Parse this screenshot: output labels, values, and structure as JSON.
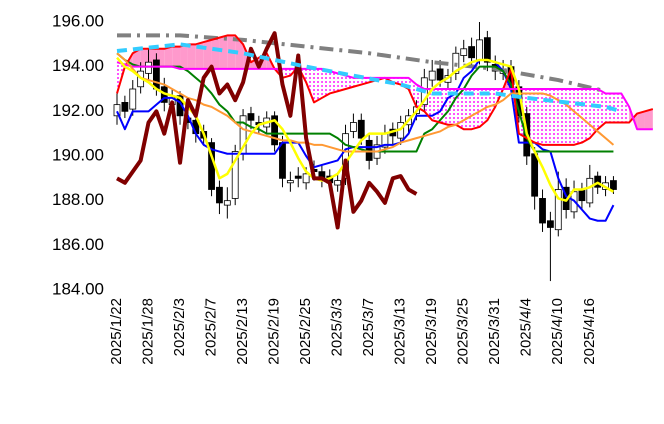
{
  "chart_data": {
    "type": "candlestick",
    "categories": [
      "2025/1/22",
      null,
      null,
      null,
      "2025/1/28",
      null,
      null,
      null,
      "2025/2/3",
      null,
      null,
      null,
      "2025/2/7",
      null,
      null,
      null,
      "2025/2/13",
      null,
      null,
      null,
      "2025/2/19",
      null,
      null,
      null,
      "2025/2/25",
      null,
      null,
      null,
      "2025/3/3",
      null,
      null,
      null,
      "2025/3/7",
      null,
      null,
      null,
      "2025/3/13",
      null,
      null,
      null,
      "2025/3/19",
      null,
      null,
      null,
      "2025/3/25",
      null,
      null,
      null,
      "2025/3/31",
      null,
      null,
      null,
      "2025/4/4",
      null,
      null,
      null,
      "2025/4/10",
      null,
      null,
      null,
      "2025/4/16",
      null,
      null,
      null,
      null,
      null,
      null,
      null,
      null
    ],
    "ylim": [
      184,
      196
    ],
    "yticks": [
      {
        "value": 184,
        "label": "184.00"
      },
      {
        "value": 186,
        "label": "186.00"
      },
      {
        "value": 188,
        "label": "188.00"
      },
      {
        "value": 190,
        "label": "190.00"
      },
      {
        "value": 192,
        "label": "192.00"
      },
      {
        "value": 194,
        "label": "194.00"
      },
      {
        "value": 196,
        "label": "196.00"
      }
    ],
    "grid": false,
    "candle_colors": {
      "up": "#ffffff",
      "down": "#000000",
      "edge": "#000000"
    },
    "ohlc": {
      "open": [
        191.8,
        192.4,
        192.1,
        193.1,
        193.7,
        194.3,
        193.1,
        192.3,
        192.7,
        191.7,
        191.6,
        191.1,
        190.6,
        188.6,
        187.8,
        188.1,
        190.1,
        191.9,
        191.5,
        191.3,
        191.8,
        190.6,
        188.8,
        189.1,
        188.8,
        189.4,
        189.3,
        189.1,
        188.7,
        189.0,
        191.1,
        191.6,
        190.7,
        189.9,
        190.4,
        191.2,
        190.8,
        191.4,
        191.9,
        192.3,
        193.4,
        193.9,
        193.3,
        193.7,
        194.5,
        194.9,
        194.3,
        195.3,
        194.1,
        193.7,
        194.0,
        193.1,
        191.9,
        190.1,
        188.1,
        187.1,
        186.7,
        188.6,
        187.5,
        188.5,
        187.9,
        189.1,
        188.5,
        188.9,
        null,
        null,
        null,
        null,
        null
      ],
      "high": [
        192.8,
        192.7,
        193.4,
        194.2,
        194.8,
        194.6,
        193.5,
        193.0,
        192.9,
        192.0,
        191.8,
        191.4,
        190.8,
        188.9,
        188.6,
        190.5,
        192.1,
        192.2,
        191.8,
        192.0,
        192.0,
        190.9,
        189.3,
        189.5,
        189.5,
        189.8,
        189.6,
        189.4,
        189.2,
        191.4,
        191.9,
        191.9,
        191.0,
        190.9,
        191.4,
        191.5,
        191.8,
        192.1,
        192.5,
        193.9,
        194.3,
        194.3,
        193.9,
        194.9,
        195.2,
        195.3,
        196.0,
        195.6,
        194.5,
        194.3,
        194.3,
        193.4,
        192.2,
        190.4,
        188.5,
        187.5,
        189.3,
        189.0,
        188.9,
        188.8,
        189.6,
        189.3,
        189.1,
        189.1,
        null,
        null,
        null,
        null,
        null
      ],
      "low": [
        191.4,
        191.7,
        191.8,
        192.8,
        193.4,
        192.7,
        192.0,
        192.0,
        191.4,
        191.2,
        190.6,
        190.5,
        188.2,
        187.4,
        187.2,
        187.8,
        189.8,
        191.2,
        191.0,
        191.0,
        190.2,
        188.6,
        188.4,
        188.6,
        188.5,
        188.9,
        188.6,
        188.5,
        188.4,
        188.7,
        190.8,
        190.5,
        189.4,
        189.6,
        190.1,
        190.5,
        190.5,
        191.0,
        191.6,
        192.0,
        193.1,
        193.1,
        193.0,
        193.4,
        194.2,
        194.0,
        194.1,
        193.8,
        193.4,
        193.4,
        192.8,
        191.5,
        189.6,
        187.6,
        186.6,
        184.4,
        186.4,
        187.2,
        187.2,
        187.6,
        187.7,
        188.3,
        188.2,
        188.3,
        null,
        null,
        null,
        null,
        null
      ],
      "close": [
        192.3,
        192.0,
        193.0,
        193.8,
        194.2,
        193.0,
        192.4,
        192.6,
        191.8,
        191.5,
        191.0,
        190.8,
        188.5,
        187.9,
        188.0,
        190.2,
        191.8,
        191.6,
        191.4,
        191.7,
        190.5,
        189.0,
        188.9,
        189.0,
        189.2,
        189.3,
        189.0,
        188.8,
        188.9,
        191.0,
        191.5,
        190.8,
        189.8,
        190.5,
        191.0,
        190.9,
        191.5,
        191.8,
        192.2,
        193.5,
        193.8,
        193.4,
        193.6,
        194.6,
        194.8,
        194.4,
        195.2,
        194.2,
        193.8,
        193.9,
        193.2,
        191.8,
        190.0,
        188.2,
        187.0,
        186.8,
        188.5,
        187.6,
        188.4,
        188.0,
        189.0,
        188.6,
        188.8,
        188.5,
        null,
        null,
        null,
        null,
        null
      ]
    },
    "cloud": {
      "upper_series": 3,
      "lower_series": 4,
      "colors": {
        "up": "#ff99cc",
        "down": "#ff00ff"
      }
    },
    "series": [
      {
        "color": "#808080",
        "width": 4,
        "dash": "14 6 3 6",
        "x": [
          0,
          8,
          16,
          24,
          32,
          40,
          48,
          56,
          62
        ],
        "values": [
          195.4,
          195.4,
          195.2,
          194.9,
          194.6,
          194.2,
          193.9,
          193.4,
          192.9
        ]
      },
      {
        "color": "#0000ff",
        "width": 2,
        "values": [
          192.0,
          191.2,
          192.0,
          192.0,
          192.0,
          192.3,
          192.6,
          192.6,
          192.4,
          191.8,
          191.0,
          190.5,
          190.3,
          190.2,
          190.1,
          190.1,
          190.1,
          190.1,
          190.1,
          190.1,
          190.1,
          190.6,
          190.6,
          190.6,
          190.0,
          189.5,
          189.6,
          189.7,
          189.8,
          190.3,
          190.4,
          190.4,
          190.4,
          190.4,
          190.5,
          190.5,
          190.6,
          191.0,
          191.8,
          191.8,
          191.8,
          192.0,
          192.6,
          192.8,
          193.5,
          193.8,
          194.3,
          194.3,
          194.2,
          193.8,
          193.0,
          190.6,
          190.6,
          190.6,
          190.3,
          190.2,
          189.0,
          188.2,
          188.0,
          187.6,
          187.2,
          187.1,
          187.1,
          187.8,
          null,
          null,
          null,
          null,
          null
        ]
      },
      {
        "color": "#008000",
        "width": 2,
        "values": [
          194.6,
          194.3,
          194.1,
          194.0,
          194.0,
          194.0,
          194.0,
          194.0,
          194.0,
          193.8,
          193.5,
          193.2,
          192.8,
          192.3,
          192.0,
          191.5,
          191.5,
          191.3,
          191.2,
          191.0,
          191.0,
          191.0,
          191.0,
          191.0,
          191.0,
          191.0,
          191.0,
          191.0,
          190.8,
          190.5,
          190.4,
          190.3,
          190.2,
          190.2,
          190.2,
          190.2,
          190.2,
          190.2,
          190.2,
          191.0,
          191.2,
          191.6,
          192.0,
          192.6,
          193.0,
          193.6,
          194.0,
          194.0,
          194.0,
          193.8,
          193.2,
          192.0,
          190.8,
          190.2,
          190.2,
          190.2,
          190.2,
          190.2,
          190.2,
          190.2,
          190.2,
          190.2,
          190.2,
          190.2,
          null,
          null,
          null,
          null,
          null
        ]
      },
      {
        "color": "#ff0000",
        "width": 2,
        "values": [
          192.8,
          194.0,
          194.6,
          194.8,
          194.8,
          194.8,
          194.8,
          194.9,
          194.9,
          195.0,
          195.0,
          195.1,
          195.2,
          195.3,
          195.4,
          195.4,
          195.0,
          194.2,
          194.4,
          194.6,
          193.9,
          193.5,
          193.6,
          194.0,
          193.3,
          192.4,
          192.6,
          192.8,
          192.9,
          193.0,
          193.1,
          193.2,
          193.3,
          193.4,
          193.5,
          193.3,
          193.2,
          193.0,
          192.2,
          192.0,
          191.6,
          191.5,
          191.4,
          191.4,
          191.2,
          191.2,
          191.3,
          191.6,
          192.2,
          193.0,
          193.9,
          191.0,
          190.8,
          190.6,
          190.5,
          190.5,
          190.5,
          190.5,
          190.5,
          190.6,
          190.8,
          191.2,
          191.5,
          191.5,
          191.5,
          191.5,
          191.9,
          192.0,
          192.1
        ]
      },
      {
        "color": "#ff00ff",
        "width": 2,
        "values": [
          194.2,
          194.1,
          194.0,
          194.0,
          194.0,
          194.0,
          194.0,
          194.0,
          193.9,
          193.9,
          193.9,
          193.9,
          193.9,
          193.9,
          193.9,
          193.9,
          193.9,
          193.9,
          193.9,
          193.9,
          193.9,
          193.9,
          193.9,
          193.9,
          193.9,
          193.9,
          193.9,
          193.8,
          193.7,
          193.6,
          193.5,
          193.5,
          193.5,
          193.5,
          193.5,
          193.5,
          193.5,
          193.5,
          193.2,
          193.0,
          193.0,
          193.0,
          193.0,
          193.0,
          193.0,
          193.0,
          193.0,
          193.0,
          193.0,
          193.0,
          193.0,
          193.0,
          193.0,
          193.0,
          193.0,
          193.0,
          193.0,
          193.0,
          193.0,
          193.0,
          193.0,
          193.0,
          192.8,
          192.8,
          192.8,
          192.2,
          191.2,
          191.2,
          191.2
        ]
      },
      {
        "color": "#ff9933",
        "width": 2,
        "values": [
          194.6,
          194.3,
          193.9,
          193.5,
          193.4,
          193.3,
          193.2,
          193.0,
          192.8,
          192.6,
          192.5,
          192.3,
          192.2,
          192.0,
          191.8,
          191.5,
          191.2,
          191.1,
          191.0,
          190.9,
          190.8,
          190.7,
          190.7,
          190.6,
          190.6,
          190.5,
          190.5,
          190.4,
          190.3,
          190.2,
          190.2,
          190.2,
          190.2,
          190.2,
          190.3,
          190.4,
          190.6,
          190.7,
          190.8,
          190.9,
          191.0,
          191.1,
          191.3,
          191.4,
          191.6,
          191.8,
          192.0,
          192.2,
          192.3,
          192.5,
          192.8,
          192.8,
          192.8,
          192.8,
          192.8,
          192.7,
          192.5,
          192.3,
          192.0,
          191.7,
          191.4,
          191.1,
          190.8,
          190.5,
          null,
          null,
          null,
          null,
          null
        ]
      },
      {
        "color": "#ffff00",
        "width": 2.5,
        "values": [
          194.4,
          194.0,
          193.8,
          193.5,
          193.3,
          193.0,
          192.8,
          192.7,
          192.6,
          192.2,
          191.8,
          191.0,
          190.0,
          189.0,
          189.2,
          189.8,
          190.4,
          191.0,
          191.4,
          191.5,
          191.6,
          191.2,
          190.6,
          189.9,
          189.3,
          189.0,
          188.9,
          189.0,
          189.2,
          189.7,
          190.2,
          190.7,
          191.0,
          191.0,
          191.0,
          191.1,
          191.2,
          191.6,
          192.0,
          192.5,
          193.0,
          193.3,
          193.5,
          193.8,
          194.0,
          194.2,
          194.3,
          194.3,
          194.2,
          194.1,
          194.0,
          193.0,
          191.0,
          190.2,
          189.5,
          188.7,
          188.1,
          188.0,
          188.5,
          188.5,
          188.6,
          188.8,
          188.6,
          188.4,
          null,
          null,
          null,
          null,
          null
        ]
      },
      {
        "color": "#800000",
        "width": 4,
        "values": [
          189.0,
          188.8,
          189.3,
          189.8,
          191.5,
          192.0,
          191.0,
          192.4,
          189.7,
          192.5,
          191.8,
          193.5,
          194.0,
          192.8,
          193.2,
          192.5,
          193.3,
          194.8,
          194.0,
          194.8,
          195.5,
          193.2,
          191.8,
          194.5,
          190.8,
          189.0,
          189.0,
          188.8,
          186.8,
          189.8,
          187.5,
          188.0,
          188.8,
          188.4,
          187.9,
          189.0,
          189.1,
          188.5,
          188.3,
          null,
          null,
          null,
          null,
          null,
          null,
          null,
          null,
          null,
          null,
          null,
          null,
          null,
          null,
          null,
          null,
          null,
          null,
          null,
          null,
          null,
          null,
          null,
          null,
          null,
          null,
          null,
          null,
          null,
          null
        ]
      },
      {
        "color": "#33ccff",
        "width": 4,
        "dash": "10 6",
        "x": [
          0,
          8,
          16,
          24,
          36,
          40,
          48,
          52,
          62,
          64
        ],
        "values": [
          194.7,
          195.0,
          194.6,
          194.0,
          193.2,
          192.8,
          192.8,
          192.6,
          192.2,
          192.0
        ]
      }
    ]
  }
}
